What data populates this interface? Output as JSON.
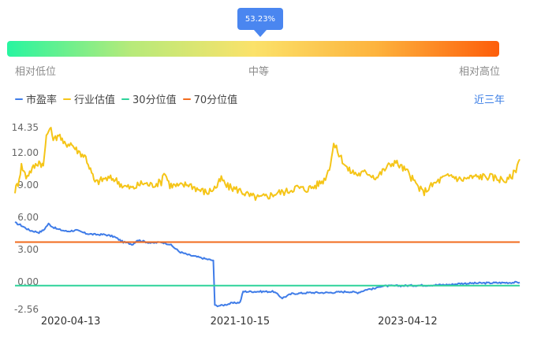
{
  "gauge": {
    "percentile": 53.23,
    "percent_label": "53.23%",
    "low_label": "相对低位",
    "mid_label": "中等",
    "high_label": "相对高位",
    "gradient_colors": [
      "#27f5a0",
      "#b6ea7a",
      "#fbe26a",
      "#fdb33d",
      "#fd5d0a"
    ]
  },
  "legend": {
    "items": [
      {
        "label": "市盈率",
        "color": "#3f7ce8"
      },
      {
        "label": "行业估值",
        "color": "#f5c518"
      },
      {
        "label": "30分位值",
        "color": "#2ed39a"
      },
      {
        "label": "70分位值",
        "color": "#f26b1d"
      }
    ]
  },
  "range_link": "近三年",
  "chart_data": {
    "type": "line",
    "ylim": [
      -2.56,
      14.35
    ],
    "yticks": [
      "14.35",
      "12.00",
      "9.00",
      "6.00",
      "3.00",
      "0.00",
      "-2.56"
    ],
    "ytick_values": [
      14.35,
      12,
      9,
      6,
      3,
      0,
      -2.56
    ],
    "xticks": [
      "2020-04-13",
      "2021-10-15",
      "2023-04-12"
    ],
    "xtick_values": [
      "2020-04-13",
      "2021-10-15",
      "2023-04-12"
    ],
    "x_range": [
      "2019-10-15",
      "2024-04-10"
    ],
    "series": [
      {
        "name": "市盈率",
        "color": "#3f7ce8",
        "points": [
          [
            "2019-10-15",
            5.5
          ],
          [
            "2019-11-01",
            5.3
          ],
          [
            "2019-12-01",
            4.8
          ],
          [
            "2020-01-01",
            4.6
          ],
          [
            "2020-01-15",
            4.8
          ],
          [
            "2020-02-01",
            5.4
          ],
          [
            "2020-02-15",
            5.1
          ],
          [
            "2020-03-01",
            4.9
          ],
          [
            "2020-04-01",
            4.7
          ],
          [
            "2020-05-01",
            4.8
          ],
          [
            "2020-06-01",
            4.5
          ],
          [
            "2020-07-01",
            4.4
          ],
          [
            "2020-08-01",
            4.4
          ],
          [
            "2020-09-01",
            4.2
          ],
          [
            "2020-10-01",
            3.7
          ],
          [
            "2020-11-01",
            3.5
          ],
          [
            "2020-11-15",
            3.9
          ],
          [
            "2020-12-01",
            3.8
          ],
          [
            "2021-01-01",
            3.6
          ],
          [
            "2021-02-01",
            3.7
          ],
          [
            "2021-03-01",
            3.5
          ],
          [
            "2021-04-01",
            2.8
          ],
          [
            "2021-05-01",
            2.5
          ],
          [
            "2021-06-01",
            2.3
          ],
          [
            "2021-07-01",
            2.1
          ],
          [
            "2021-07-20",
            2.0
          ],
          [
            "2021-07-25",
            -2.2
          ],
          [
            "2021-08-15",
            -2.2
          ],
          [
            "2021-09-15",
            -2.0
          ],
          [
            "2021-10-15",
            -1.9
          ],
          [
            "2021-10-25",
            -0.9
          ],
          [
            "2021-12-01",
            -0.9
          ],
          [
            "2022-01-01",
            -0.9
          ],
          [
            "2022-02-01",
            -0.9
          ],
          [
            "2022-03-01",
            -1.5
          ],
          [
            "2022-04-01",
            -1.1
          ],
          [
            "2022-06-01",
            -1.0
          ],
          [
            "2022-08-01",
            -1.0
          ],
          [
            "2022-10-01",
            -0.9
          ],
          [
            "2022-11-01",
            -1.0
          ],
          [
            "2022-12-01",
            -0.7
          ],
          [
            "2023-01-01",
            -0.6
          ],
          [
            "2023-01-10",
            -0.4
          ],
          [
            "2023-04-01",
            -0.35
          ],
          [
            "2023-07-01",
            -0.3
          ],
          [
            "2023-09-01",
            -0.25
          ],
          [
            "2023-10-01",
            -0.15
          ],
          [
            "2024-01-01",
            -0.1
          ],
          [
            "2024-04-10",
            -0.05
          ]
        ]
      },
      {
        "name": "行业估值",
        "color": "#f5c518",
        "points": [
          [
            "2019-10-15",
            8.5
          ],
          [
            "2019-10-25",
            9.2
          ],
          [
            "2019-11-05",
            10.8
          ],
          [
            "2019-11-20",
            9.8
          ],
          [
            "2019-12-10",
            10.5
          ],
          [
            "2020-01-01",
            11.2
          ],
          [
            "2020-01-15",
            10.8
          ],
          [
            "2020-01-25",
            13.5
          ],
          [
            "2020-02-05",
            14.3
          ],
          [
            "2020-02-20",
            13.2
          ],
          [
            "2020-03-05",
            13.8
          ],
          [
            "2020-03-20",
            12.8
          ],
          [
            "2020-04-13",
            12.9
          ],
          [
            "2020-05-01",
            12.3
          ],
          [
            "2020-06-01",
            11.6
          ],
          [
            "2020-06-20",
            10.1
          ],
          [
            "2020-07-01",
            9.2
          ],
          [
            "2020-08-01",
            9.6
          ],
          [
            "2020-09-01",
            9.6
          ],
          [
            "2020-10-01",
            8.9
          ],
          [
            "2020-11-01",
            8.7
          ],
          [
            "2020-12-01",
            9.2
          ],
          [
            "2021-01-01",
            9.0
          ],
          [
            "2021-02-01",
            9.3
          ],
          [
            "2021-02-10",
            10.3
          ],
          [
            "2021-03-01",
            9.0
          ],
          [
            "2021-04-01",
            8.9
          ],
          [
            "2021-05-01",
            9.1
          ],
          [
            "2021-06-01",
            8.6
          ],
          [
            "2021-07-01",
            8.3
          ],
          [
            "2021-08-01",
            8.9
          ],
          [
            "2021-08-15",
            9.6
          ],
          [
            "2021-09-01",
            8.9
          ],
          [
            "2021-10-15",
            8.5
          ],
          [
            "2021-11-15",
            8.0
          ],
          [
            "2021-12-15",
            7.8
          ],
          [
            "2022-01-15",
            8.0
          ],
          [
            "2022-02-15",
            8.3
          ],
          [
            "2022-03-15",
            8.4
          ],
          [
            "2022-04-15",
            8.8
          ],
          [
            "2022-05-15",
            8.6
          ],
          [
            "2022-06-15",
            8.9
          ],
          [
            "2022-07-15",
            9.5
          ],
          [
            "2022-08-01",
            10.6
          ],
          [
            "2022-08-15",
            12.8
          ],
          [
            "2022-09-01",
            11.9
          ],
          [
            "2022-10-01",
            10.4
          ],
          [
            "2022-11-01",
            10.0
          ],
          [
            "2022-12-01",
            10.2
          ],
          [
            "2023-01-01",
            9.7
          ],
          [
            "2023-02-01",
            10.6
          ],
          [
            "2023-03-01",
            11.2
          ],
          [
            "2023-04-12",
            10.2
          ],
          [
            "2023-05-01",
            9.4
          ],
          [
            "2023-06-01",
            8.3
          ],
          [
            "2023-07-01",
            9.0
          ],
          [
            "2023-08-01",
            9.6
          ],
          [
            "2023-09-01",
            9.9
          ],
          [
            "2023-10-01",
            9.5
          ],
          [
            "2023-11-01",
            9.7
          ],
          [
            "2023-12-01",
            9.8
          ],
          [
            "2024-01-01",
            9.8
          ],
          [
            "2024-02-01",
            9.6
          ],
          [
            "2024-03-01",
            9.4
          ],
          [
            "2024-03-25",
            10.2
          ],
          [
            "2024-04-10",
            11.4
          ]
        ]
      },
      {
        "name": "30分位值",
        "color": "#2ed39a",
        "constant": -0.35
      },
      {
        "name": "70分位值",
        "color": "#f26b1d",
        "constant": 3.7
      }
    ]
  }
}
